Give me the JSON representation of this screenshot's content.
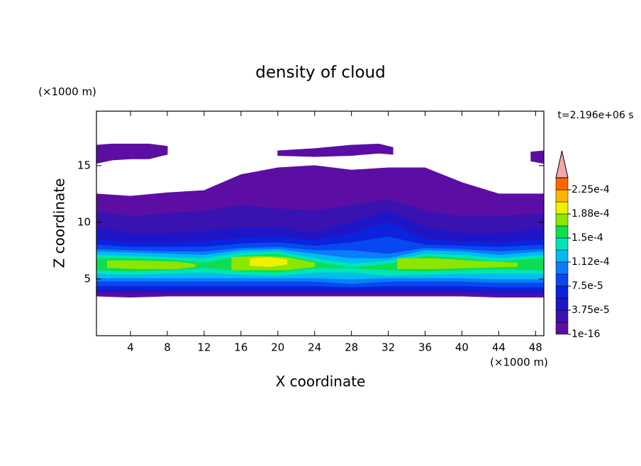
{
  "chart_data": {
    "type": "contour",
    "title": "density of cloud",
    "x_label": "X coordinate",
    "y_label": "Z coordinate",
    "x_unit": "(×1000 m)",
    "y_unit": "(×1000 m)",
    "time_label": "t=2.196e+06 s",
    "xlim": [
      0.3,
      48.9
    ],
    "ylim": [
      0,
      19.8
    ],
    "xticks": [
      4,
      8,
      12,
      16,
      20,
      24,
      28,
      32,
      36,
      40,
      44,
      48
    ],
    "yticks": [
      5,
      10,
      15
    ],
    "levels": [
      1e-16,
      1.875e-05,
      3.75e-05,
      5.625e-05,
      7.5e-05,
      9.375e-05,
      0.0001125,
      0.00013125,
      0.00015,
      0.00016875,
      0.0001875,
      0.00020625,
      0.000225,
      0.00024375
    ],
    "colors": [
      "#5c0ea4",
      "#3a12b2",
      "#1e16c6",
      "#0c22dc",
      "#0848f0",
      "#0a7cfc",
      "#00bcf0",
      "#00e6b4",
      "#10dc50",
      "#8ce600",
      "#f0f000",
      "#ffb400",
      "#ff6400"
    ],
    "extend_color": "#f4a8a8",
    "colorbar_ticks": [
      1e-16,
      {
        "value": 3.75e-05,
        "label": "3.75e-5"
      },
      {
        "value": 7.5e-05,
        "label": "7.5e-5"
      },
      {
        "value": 0.0001125,
        "label": "1.12e-4"
      },
      {
        "value": 0.00015,
        "label": "1.5e-4"
      },
      {
        "value": 0.0001875,
        "label": "1.88e-4"
      },
      {
        "value": 0.000225,
        "label": "2.25e-4"
      }
    ],
    "regions": [
      {
        "min": 1e-16,
        "x": [
          0.3,
          4,
          8,
          12,
          16,
          20,
          24,
          28,
          32,
          36,
          40,
          44,
          48.9
        ],
        "top": [
          12.5,
          12.3,
          12.6,
          12.8,
          14.2,
          14.8,
          15,
          14.6,
          14.8,
          14.8,
          13.5,
          12.5,
          12.5
        ],
        "bottom": [
          3.5,
          3.4,
          3.5,
          3.5,
          3.5,
          3.5,
          3.5,
          3.5,
          3.5,
          3.5,
          3.5,
          3.4,
          3.4
        ]
      },
      {
        "min": 1e-16,
        "x": [
          0.3,
          2,
          4,
          6,
          8
        ],
        "top": [
          16.8,
          16.9,
          16.9,
          16.9,
          16.7
        ],
        "bottom": [
          15.2,
          15.5,
          15.6,
          15.6,
          16.0
        ]
      },
      {
        "min": 1e-16,
        "x": [
          20,
          24,
          28,
          31,
          32.5
        ],
        "top": [
          16.3,
          16.5,
          16.8,
          16.9,
          16.6
        ],
        "bottom": [
          15.9,
          15.8,
          15.9,
          16.1,
          16.0
        ]
      },
      {
        "min": 1e-16,
        "x": [
          47.5,
          48.9
        ],
        "top": [
          16.2,
          16.3
        ],
        "bottom": [
          15.4,
          15.2
        ]
      },
      {
        "min": 1.875e-05,
        "x": [
          0.3,
          4,
          8,
          12,
          16,
          20,
          24,
          28,
          32,
          36,
          40,
          44,
          48.9
        ],
        "top": [
          11,
          10.5,
          10.8,
          11,
          11.5,
          11.2,
          11,
          11.5,
          12,
          11,
          10.5,
          10.5,
          10.8
        ],
        "bottom": [
          3.7,
          3.7,
          3.7,
          3.7,
          3.7,
          3.7,
          3.7,
          3.7,
          3.7,
          3.7,
          3.7,
          3.6,
          3.6
        ]
      },
      {
        "min": 3.75e-05,
        "x": [
          0.3,
          4,
          8,
          12,
          16,
          20,
          24,
          28,
          32,
          36,
          40,
          44,
          48.9
        ],
        "top": [
          9.5,
          9,
          9,
          9.2,
          9.5,
          9.5,
          9,
          10,
          11,
          9.5,
          9,
          9,
          9.5
        ],
        "bottom": [
          3.9,
          3.9,
          3.9,
          3.9,
          3.9,
          3.9,
          3.9,
          3.9,
          3.9,
          3.9,
          3.9,
          3.8,
          3.8
        ]
      },
      {
        "min": 5.625e-05,
        "x": [
          0.3,
          4,
          8,
          12,
          16,
          20,
          24,
          28,
          32,
          36,
          40,
          44,
          48.9
        ],
        "top": [
          8.5,
          8.2,
          8.2,
          8.3,
          8.6,
          8.7,
          8.4,
          9,
          10,
          8.5,
          8.3,
          8.2,
          8.5
        ],
        "bottom": [
          4.1,
          4.1,
          4.1,
          4.1,
          4.1,
          4.1,
          4.1,
          4.1,
          4.1,
          4.1,
          4.1,
          4.0,
          4.0
        ]
      },
      {
        "min": 7.5e-05,
        "x": [
          0.3,
          4,
          8,
          12,
          16,
          20,
          24,
          28,
          32,
          36,
          40,
          44,
          48.9
        ],
        "top": [
          8,
          7.8,
          7.8,
          7.8,
          8.1,
          8.2,
          7.9,
          8.2,
          8.7,
          8,
          7.9,
          7.8,
          8
        ],
        "bottom": [
          4.4,
          4.4,
          4.4,
          4.4,
          4.4,
          4.4,
          4.4,
          4.3,
          4.4,
          4.4,
          4.4,
          4.3,
          4.3
        ]
      },
      {
        "min": 9.375e-05,
        "x": [
          0.3,
          4,
          8,
          12,
          16,
          20,
          24,
          28,
          32,
          36,
          40,
          44,
          48.9
        ],
        "top": [
          7.6,
          7.5,
          7.4,
          7.4,
          7.7,
          7.8,
          7.5,
          7.5,
          7.2,
          7.7,
          7.6,
          7.4,
          7.6
        ],
        "bottom": [
          4.8,
          4.8,
          4.8,
          4.8,
          4.8,
          4.8,
          4.8,
          4.6,
          4.8,
          4.8,
          4.8,
          4.7,
          4.7
        ]
      },
      {
        "min": 0.0001125,
        "x": [
          0.3,
          4,
          8,
          12,
          16,
          20,
          24,
          28,
          32,
          36,
          40,
          44,
          48.9
        ],
        "top": [
          7.4,
          7.3,
          7.2,
          7.1,
          7.5,
          7.6,
          7.2,
          6.8,
          6.8,
          7.5,
          7.4,
          7.1,
          7.4
        ],
        "bottom": [
          5.1,
          5.1,
          5.1,
          5.1,
          5.1,
          5.1,
          5.1,
          5.0,
          5.1,
          5.1,
          5.1,
          5.0,
          5.0
        ]
      },
      {
        "min": 0.00013125,
        "x": [
          0.3,
          4,
          8,
          12,
          16,
          20,
          24,
          28,
          32,
          36,
          40,
          44,
          48.9
        ],
        "top": [
          7.1,
          7,
          6.9,
          6.8,
          7.3,
          7.4,
          6.8,
          6.3,
          6.6,
          7.2,
          7.1,
          6.8,
          7.1
        ],
        "bottom": [
          5.5,
          5.4,
          5.5,
          5.6,
          5.4,
          5.3,
          5.6,
          5.6,
          5.3,
          5.4,
          5.5,
          5.5,
          5.5
        ]
      },
      {
        "min": 0.00015,
        "x": [
          0.3,
          4,
          8,
          12,
          16,
          20,
          24,
          28,
          32,
          36,
          40,
          44,
          48.9
        ],
        "top": [
          6.8,
          6.8,
          6.7,
          6.4,
          7,
          7.2,
          6.5,
          6,
          6.3,
          7,
          6.8,
          6.5,
          6.8
        ],
        "bottom": [
          5.8,
          5.7,
          5.8,
          6,
          5.7,
          5.6,
          6,
          6,
          5.8,
          5.7,
          5.8,
          5.9,
          5.8
        ]
      },
      {
        "min": 0.00016875,
        "x": [
          1.5,
          5,
          9,
          11
        ],
        "top": [
          6.6,
          6.6,
          6.5,
          6.3
        ],
        "bottom": [
          6.0,
          5.9,
          5.9,
          6.1
        ]
      },
      {
        "min": 0.00016875,
        "x": [
          15,
          18,
          21,
          24
        ],
        "top": [
          6.9,
          7.0,
          6.9,
          6.4
        ],
        "bottom": [
          5.8,
          5.8,
          5.8,
          6.1
        ]
      },
      {
        "min": 0.00016875,
        "x": [
          33,
          37,
          41,
          46
        ],
        "top": [
          6.8,
          6.8,
          6.6,
          6.4
        ],
        "bottom": [
          5.9,
          5.9,
          6.0,
          6.1
        ]
      },
      {
        "min": 0.0001875,
        "x": [
          17,
          19,
          21
        ],
        "top": [
          6.8,
          6.9,
          6.7
        ],
        "bottom": [
          6.2,
          6.1,
          6.3
        ]
      }
    ]
  }
}
